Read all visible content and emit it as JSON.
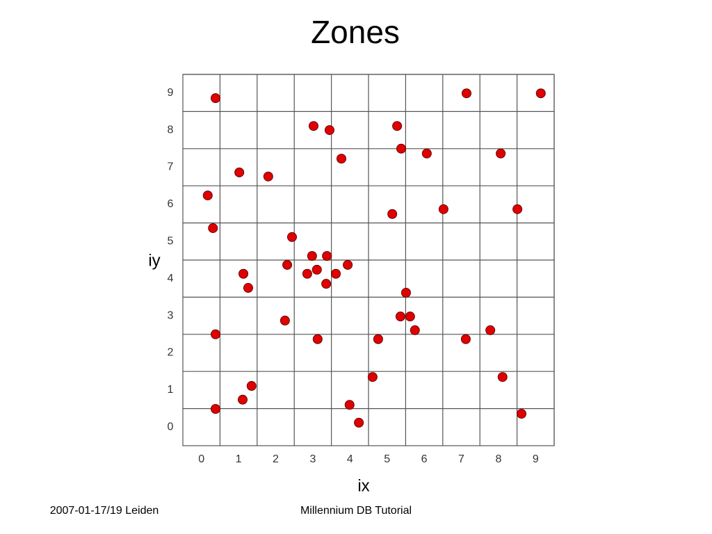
{
  "chart_data": {
    "type": "scatter",
    "title": "Zones",
    "x_label": "ix",
    "y_label": "iy",
    "x": [
      0.38,
      7.14,
      9.14,
      3.02,
      3.45,
      5.27,
      5.38,
      6.07,
      8.06,
      3.77,
      1.02,
      1.8,
      0.17,
      6.52,
      8.51,
      5.14,
      0.31,
      2.44,
      2.98,
      3.38,
      2.31,
      3.94,
      3.11,
      2.85,
      3.62,
      1.13,
      3.36,
      1.26,
      5.51,
      5.36,
      5.62,
      2.25,
      5.75,
      7.78,
      0.38,
      3.13,
      4.76,
      7.12,
      4.61,
      8.11,
      1.35,
      1.11,
      3.99,
      0.38,
      8.62,
      4.24
    ],
    "y": [
      8.86,
      8.99,
      8.99,
      8.11,
      8.0,
      8.11,
      7.5,
      7.37,
      7.37,
      7.23,
      6.86,
      6.75,
      6.24,
      5.87,
      5.87,
      5.74,
      5.36,
      5.12,
      4.61,
      4.61,
      4.37,
      4.37,
      4.24,
      4.13,
      4.13,
      4.13,
      3.86,
      3.75,
      3.62,
      2.98,
      2.98,
      2.87,
      2.61,
      2.61,
      2.5,
      2.37,
      2.37,
      2.37,
      1.35,
      1.35,
      1.11,
      0.74,
      0.6,
      0.49,
      0.36,
      0.12
    ],
    "color": "#e00000",
    "xlim": [
      -0.5,
      9.5
    ],
    "ylim": [
      -0.5,
      9.5
    ],
    "xticks": [
      0,
      1,
      2,
      3,
      4,
      5,
      6,
      7,
      8,
      9
    ],
    "yticks": [
      0,
      1,
      2,
      3,
      4,
      5,
      6,
      7,
      8,
      9
    ],
    "grid": true
  },
  "footer": {
    "left": "2007-01-17/19 Leiden",
    "center": "Millennium DB Tutorial"
  }
}
